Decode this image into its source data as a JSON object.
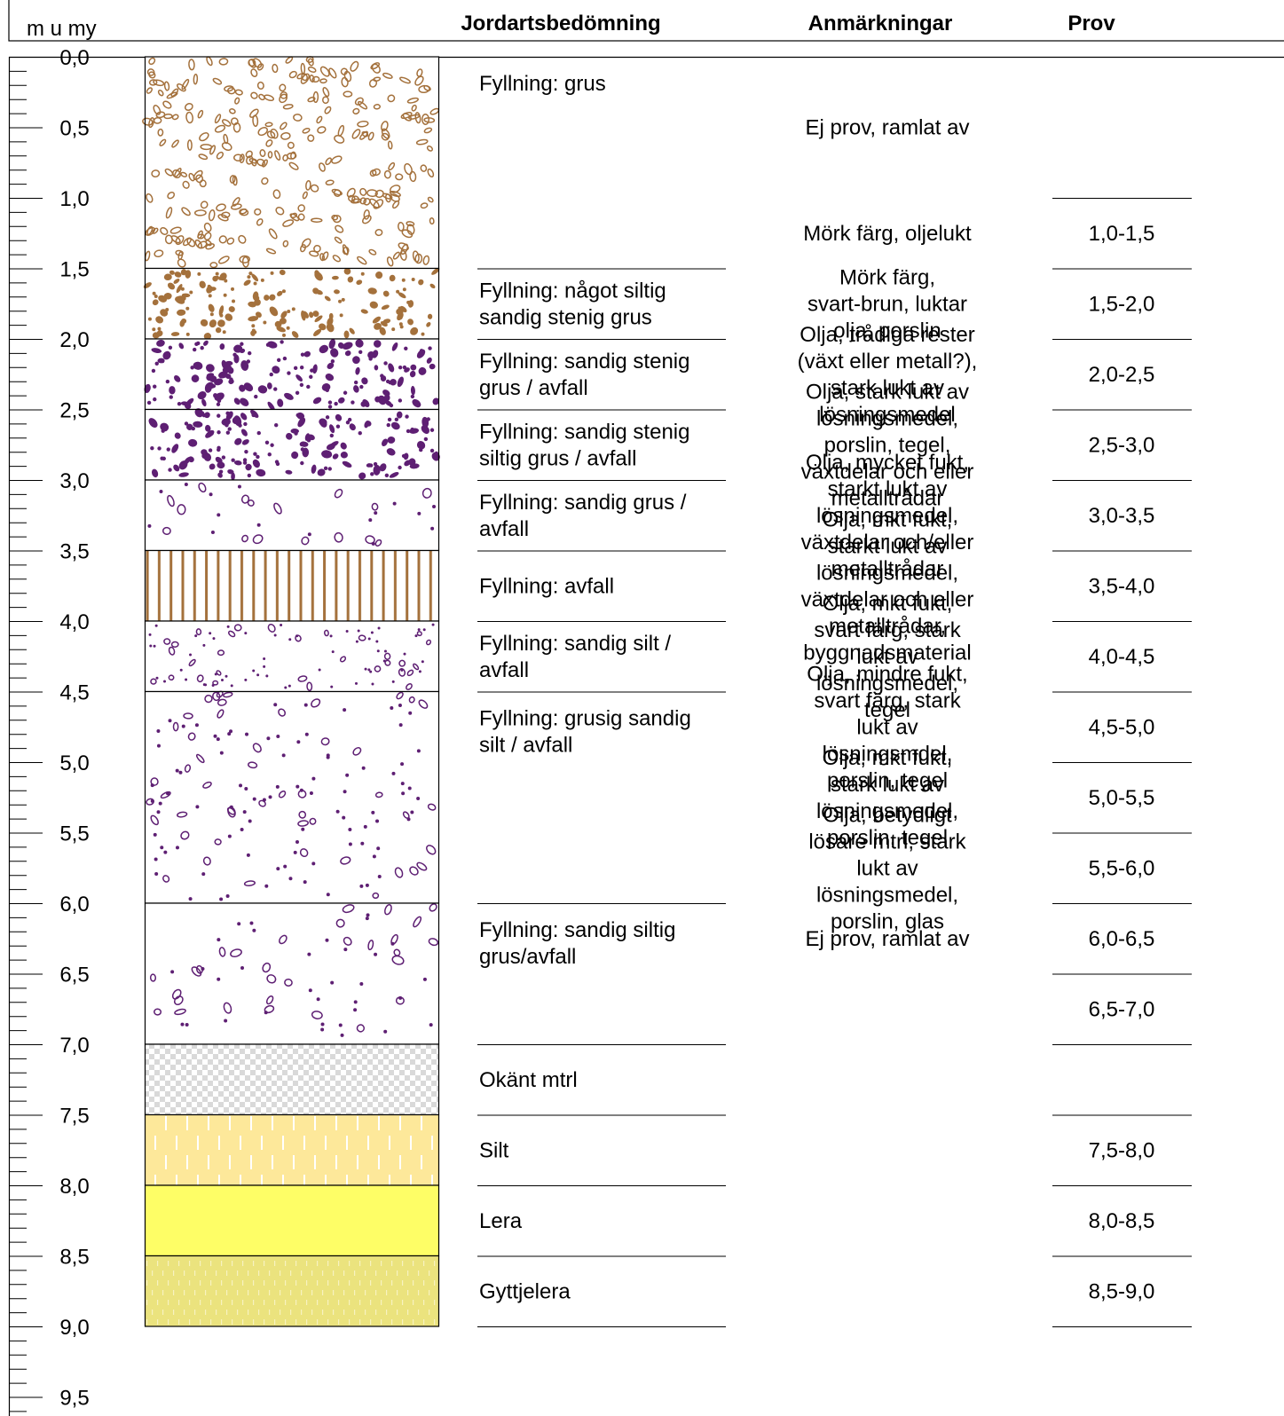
{
  "header": {
    "depth_unit": "m u my",
    "soil_col": "Jordartsbedömning",
    "remarks_col": "Anmärkningar",
    "sample_col": "Prov"
  },
  "scale": {
    "labels": [
      "0,0",
      "0,5",
      "1,0",
      "1,5",
      "2,0",
      "2,5",
      "3,0",
      "3,5",
      "4,0",
      "4,5",
      "5,0",
      "5,5",
      "6,0",
      "6,5",
      "7,0",
      "7,5",
      "8,0",
      "8,5",
      "9,0",
      "9,5"
    ]
  },
  "layers": [
    {
      "top": 0.0,
      "bottom": 1.5,
      "pattern": "open-gravel",
      "description": [
        "Fyllning: grus"
      ]
    },
    {
      "top": 1.5,
      "bottom": 2.0,
      "pattern": "brown-stones",
      "description": [
        "Fyllning: något siltig",
        "sandig stenig grus"
      ]
    },
    {
      "top": 2.0,
      "bottom": 2.5,
      "pattern": "purple-stones",
      "description": [
        "Fyllning: sandig stenig",
        "grus / avfall"
      ]
    },
    {
      "top": 2.5,
      "bottom": 3.0,
      "pattern": "purple-stones",
      "description": [
        "Fyllning: sandig stenig",
        "siltig grus / avfall"
      ]
    },
    {
      "top": 3.0,
      "bottom": 3.5,
      "pattern": "purple-sparse",
      "description": [
        "Fyllning: sandig grus /",
        "avfall"
      ]
    },
    {
      "top": 3.5,
      "bottom": 4.0,
      "pattern": "brown-vertical",
      "description": [
        "Fyllning: avfall"
      ]
    },
    {
      "top": 4.0,
      "bottom": 4.5,
      "pattern": "purple-fine",
      "description": [
        "Fyllning: sandig silt /",
        "avfall"
      ]
    },
    {
      "top": 4.5,
      "bottom": 6.0,
      "pattern": "purple-medium",
      "description": [
        "Fyllning: grusig sandig",
        "silt / avfall"
      ]
    },
    {
      "top": 6.0,
      "bottom": 7.0,
      "pattern": "purple-sparse",
      "description": [
        "Fyllning: sandig siltig",
        "grus/avfall"
      ]
    },
    {
      "top": 7.0,
      "bottom": 7.5,
      "pattern": "grey-checker",
      "description": [
        "Okänt mtrl"
      ]
    },
    {
      "top": 7.5,
      "bottom": 8.0,
      "pattern": "silt",
      "description": [
        "Silt"
      ]
    },
    {
      "top": 8.0,
      "bottom": 8.5,
      "pattern": "clay",
      "description": [
        "Lera"
      ]
    },
    {
      "top": 8.5,
      "bottom": 9.0,
      "pattern": "gyttja-clay",
      "description": [
        "Gyttjelera"
      ]
    }
  ],
  "remarks": [
    {
      "depth": 0.5,
      "lines": [
        "Ej prov, ramlat av"
      ]
    },
    {
      "depth": 1.25,
      "lines": [
        "Mörk färg, oljelukt"
      ]
    },
    {
      "depth": 1.75,
      "lines": [
        "Mörk färg,",
        "svart-brun, luktar",
        "olja, porslin"
      ]
    },
    {
      "depth": 2.25,
      "lines": [
        "Olja, trådiga rester",
        "(växt eller metall?),",
        "stark lukt av",
        "lösningsmedel"
      ]
    },
    {
      "depth": 2.75,
      "lines": [
        "Olja, stark lukt av",
        "lösningsmedel,",
        "porslin, tegel,",
        "växtdelar och eller",
        "metalltrådar"
      ]
    },
    {
      "depth": 3.25,
      "lines": [
        "Olja, mycket fukt,",
        "starkt lukt av",
        "lösningsmedel,",
        "växtdelar och/eller",
        "metalltrådar"
      ]
    },
    {
      "depth": 3.75,
      "lines": [
        "Olja, mkt fukt,",
        "starkt lukt av",
        "lösningsmedel,",
        "växtdelar och eller",
        "metalltrådar,",
        "byggnadsmaterial"
      ]
    },
    {
      "depth": 4.25,
      "lines": [
        "Olja, mkt fukt,",
        "svart färg, stark",
        "lukt av",
        "lösningsmedel,",
        "tegel"
      ]
    },
    {
      "depth": 4.75,
      "lines": [
        "Olja, mindre fukt,",
        "svart färg, stark",
        "lukt av",
        "lösningsmdel,",
        "porslin, tegel"
      ]
    },
    {
      "depth": 5.25,
      "lines": [
        "Olja, mkt fukt,",
        "stark lukt av",
        "lösningsmedel,",
        "porslin, tegel"
      ]
    },
    {
      "depth": 5.75,
      "lines": [
        "Olja, betydligt",
        "lösare mtrl, stark",
        "lukt av",
        "lösningsmedel,",
        "porslin, glas"
      ]
    },
    {
      "depth": 6.25,
      "lines": [
        "Ej prov, ramlat av"
      ]
    }
  ],
  "samples": [
    {
      "top": 1.0,
      "bottom": 1.5,
      "label": "1,0-1,5"
    },
    {
      "top": 1.5,
      "bottom": 2.0,
      "label": "1,5-2,0"
    },
    {
      "top": 2.0,
      "bottom": 2.5,
      "label": "2,0-2,5"
    },
    {
      "top": 2.5,
      "bottom": 3.0,
      "label": "2,5-3,0"
    },
    {
      "top": 3.0,
      "bottom": 3.5,
      "label": "3,0-3,5"
    },
    {
      "top": 3.5,
      "bottom": 4.0,
      "label": "3,5-4,0"
    },
    {
      "top": 4.0,
      "bottom": 4.5,
      "label": "4,0-4,5"
    },
    {
      "top": 4.5,
      "bottom": 5.0,
      "label": "4,5-5,0"
    },
    {
      "top": 5.0,
      "bottom": 5.5,
      "label": "5,0-5,5"
    },
    {
      "top": 5.5,
      "bottom": 6.0,
      "label": "5,5-6,0"
    },
    {
      "top": 6.0,
      "bottom": 6.5,
      "label": "6,0-6,5"
    },
    {
      "top": 6.5,
      "bottom": 7.0,
      "label": "6,5-7,0"
    },
    {
      "top": 7.0,
      "bottom": 7.5,
      "label": ""
    },
    {
      "top": 7.5,
      "bottom": 8.0,
      "label": "7,5-8,0"
    },
    {
      "top": 8.0,
      "bottom": 8.5,
      "label": "8,0-8,5"
    },
    {
      "top": 8.5,
      "bottom": 9.0,
      "label": "8,5-9,0"
    }
  ],
  "colors": {
    "brown": "#a4713c",
    "purple": "#5e1f73",
    "checker_grey": "#d9d9d9",
    "silt_fill": "#fde89a",
    "clay_fill": "#fefe66",
    "gyttja_fill": "#ebe37e",
    "line": "#000000"
  }
}
